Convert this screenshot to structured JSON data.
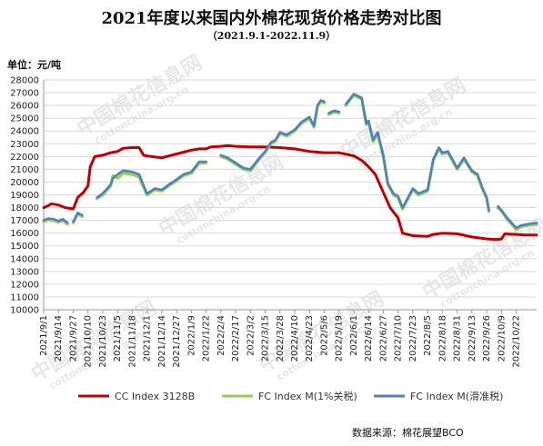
{
  "page": {
    "title": "2021年度以来国内外棉花现货价格走势对比图",
    "subtitle": "（2021.9.1-2022.11.9）",
    "unit_label": "单位：元/吨",
    "source": "数据来源：棉花展望BCO",
    "watermark_text": "中国棉花信息网",
    "watermark_url": "cottonchina.org.cn"
  },
  "chart_data": {
    "type": "line",
    "ylim": [
      10000,
      28000
    ],
    "y_ticks": [
      10000,
      11000,
      12000,
      13000,
      14000,
      15000,
      16000,
      17000,
      18000,
      19000,
      20000,
      21000,
      22000,
      23000,
      24000,
      25000,
      26000,
      27000,
      28000
    ],
    "x_ticks": [
      "2021/9/1",
      "2021/9/14",
      "2021/9/27",
      "2021/10/10",
      "2021/10/23",
      "2021/11/5",
      "2021/11/18",
      "2021/12/1",
      "2021/12/14",
      "2021/12/27",
      "2022/1/9",
      "2022/1/22",
      "2022/2/4",
      "2022/2/17",
      "2022/3/2",
      "2022/3/15",
      "2022/3/28",
      "2022/4/10",
      "2022/4/23",
      "2022/5/6",
      "2022/5/19",
      "2022/6/1",
      "2022/6/14",
      "2022/6/27",
      "2022/7/10",
      "2022/7/23",
      "2022/8/5",
      "2022/8/18",
      "2022/8/31",
      "2022/9/13",
      "2022/9/26",
      "2022/10/9",
      "2022/10/22"
    ],
    "grid": "horizontal",
    "legend_position": "bottom",
    "series": [
      {
        "name": "CC Index 3128B",
        "color": "#c00000",
        "points": [
          [
            "2021-09-01",
            18000
          ],
          [
            "2021-09-05",
            18150
          ],
          [
            "2021-09-08",
            18300
          ],
          [
            "2021-09-14",
            18200
          ],
          [
            "2021-09-20",
            18000
          ],
          [
            "2021-09-27",
            17900
          ],
          [
            "2021-10-01",
            18800
          ],
          [
            "2021-10-06",
            19200
          ],
          [
            "2021-10-10",
            19700
          ],
          [
            "2021-10-12",
            21200
          ],
          [
            "2021-10-16",
            22000
          ],
          [
            "2021-10-23",
            22100
          ],
          [
            "2021-10-30",
            22300
          ],
          [
            "2021-11-05",
            22400
          ],
          [
            "2021-11-10",
            22650
          ],
          [
            "2021-11-18",
            22700
          ],
          [
            "2021-11-24",
            22700
          ],
          [
            "2021-11-28",
            22100
          ],
          [
            "2021-12-01",
            22050
          ],
          [
            "2021-12-14",
            21900
          ],
          [
            "2021-12-27",
            22200
          ],
          [
            "2022-01-09",
            22500
          ],
          [
            "2022-01-16",
            22600
          ],
          [
            "2022-01-22",
            22600
          ],
          [
            "2022-01-26",
            22750
          ],
          [
            "2022-02-04",
            22800
          ],
          [
            "2022-02-10",
            22850
          ],
          [
            "2022-02-17",
            22800
          ],
          [
            "2022-03-02",
            22750
          ],
          [
            "2022-03-15",
            22750
          ],
          [
            "2022-03-28",
            22700
          ],
          [
            "2022-04-10",
            22600
          ],
          [
            "2022-04-23",
            22400
          ],
          [
            "2022-05-06",
            22300
          ],
          [
            "2022-05-19",
            22300
          ],
          [
            "2022-06-01",
            22050
          ],
          [
            "2022-06-08",
            21700
          ],
          [
            "2022-06-14",
            21200
          ],
          [
            "2022-06-20",
            20600
          ],
          [
            "2022-06-27",
            19200
          ],
          [
            "2022-07-03",
            18000
          ],
          [
            "2022-07-10",
            17200
          ],
          [
            "2022-07-14",
            16000
          ],
          [
            "2022-07-23",
            15800
          ],
          [
            "2022-08-05",
            15750
          ],
          [
            "2022-08-10",
            15900
          ],
          [
            "2022-08-18",
            16000
          ],
          [
            "2022-08-31",
            15950
          ],
          [
            "2022-09-13",
            15700
          ],
          [
            "2022-09-26",
            15550
          ],
          [
            "2022-10-05",
            15500
          ],
          [
            "2022-10-09",
            15550
          ],
          [
            "2022-10-12",
            15950
          ],
          [
            "2022-10-22",
            15900
          ],
          [
            "2022-10-30",
            15850
          ],
          [
            "2022-11-09",
            15850
          ]
        ]
      },
      {
        "name": "FC Index M(1%关税)",
        "color": "#92d050",
        "points": [
          [
            "2021-09-01",
            16900
          ],
          [
            "2021-09-05",
            17050
          ],
          [
            "2021-09-10",
            17000
          ],
          [
            "2021-09-14",
            16850
          ],
          [
            "2021-09-18",
            17000
          ],
          [
            "2021-09-22",
            16700
          ],
          null,
          [
            "2021-09-27",
            16800
          ],
          [
            "2021-10-01",
            17500
          ],
          [
            "2021-10-05",
            17300
          ],
          null,
          [
            "2021-10-18",
            18700
          ],
          [
            "2021-10-23",
            19000
          ],
          [
            "2021-10-30",
            19700
          ],
          [
            "2021-11-01",
            20500
          ],
          [
            "2021-11-05",
            20300
          ],
          [
            "2021-11-10",
            20700
          ],
          [
            "2021-11-18",
            20600
          ],
          [
            "2021-11-24",
            20400
          ],
          [
            "2021-12-01",
            19000
          ],
          [
            "2021-12-08",
            19400
          ],
          [
            "2021-12-14",
            19300
          ],
          [
            "2021-12-20",
            19700
          ],
          [
            "2021-12-27",
            20100
          ],
          [
            "2022-01-02",
            20500
          ],
          [
            "2022-01-09",
            20700
          ],
          [
            "2022-01-16",
            21500
          ],
          [
            "2022-01-22",
            21500
          ],
          null,
          [
            "2022-02-04",
            22000
          ],
          [
            "2022-02-10",
            21800
          ],
          [
            "2022-02-17",
            21400
          ],
          [
            "2022-02-24",
            21000
          ],
          [
            "2022-03-02",
            20900
          ],
          [
            "2022-03-10",
            21800
          ],
          [
            "2022-03-15",
            22300
          ],
          [
            "2022-03-20",
            23000
          ],
          [
            "2022-03-24",
            23200
          ],
          [
            "2022-03-28",
            23800
          ],
          [
            "2022-04-03",
            23600
          ],
          [
            "2022-04-10",
            24000
          ],
          [
            "2022-04-16",
            24600
          ],
          [
            "2022-04-23",
            25000
          ],
          [
            "2022-04-27",
            24300
          ],
          [
            "2022-04-30",
            25900
          ],
          [
            "2022-05-03",
            26300
          ],
          [
            "2022-05-06",
            26200
          ],
          null,
          [
            "2022-05-10",
            25300
          ],
          [
            "2022-05-15",
            25500
          ],
          [
            "2022-05-19",
            25400
          ],
          null,
          [
            "2022-05-25",
            26000
          ],
          [
            "2022-06-01",
            26800
          ],
          [
            "2022-06-08",
            26500
          ],
          [
            "2022-06-12",
            24500
          ],
          [
            "2022-06-14",
            24700
          ],
          [
            "2022-06-18",
            23200
          ],
          [
            "2022-06-22",
            23800
          ],
          [
            "2022-06-27",
            22000
          ],
          [
            "2022-07-01",
            19800
          ],
          [
            "2022-07-06",
            19000
          ],
          [
            "2022-07-10",
            18800
          ],
          [
            "2022-07-14",
            17900
          ],
          [
            "2022-07-23",
            19400
          ],
          [
            "2022-07-28",
            19000
          ],
          [
            "2022-08-05",
            19300
          ],
          [
            "2022-08-10",
            21700
          ],
          [
            "2022-08-15",
            22600
          ],
          [
            "2022-08-18",
            22200
          ],
          [
            "2022-08-23",
            22300
          ],
          [
            "2022-08-28",
            21500
          ],
          [
            "2022-08-31",
            21000
          ],
          [
            "2022-09-06",
            21800
          ],
          [
            "2022-09-13",
            20800
          ],
          [
            "2022-09-18",
            20500
          ],
          [
            "2022-09-22",
            19500
          ],
          [
            "2022-09-26",
            18700
          ],
          [
            "2022-09-28",
            17700
          ],
          null,
          [
            "2022-10-06",
            18000
          ],
          [
            "2022-10-09",
            17700
          ],
          [
            "2022-10-14",
            17100
          ],
          [
            "2022-10-22",
            16300
          ],
          [
            "2022-10-26",
            16500
          ],
          [
            "2022-11-01",
            16600
          ],
          [
            "2022-11-09",
            16700
          ]
        ]
      },
      {
        "name": "FC Index M(滑准税)",
        "color": "#4f81bd",
        "points": [
          [
            "2021-09-01",
            17000
          ],
          [
            "2021-09-05",
            17150
          ],
          [
            "2021-09-10",
            17100
          ],
          [
            "2021-09-14",
            16950
          ],
          [
            "2021-09-18",
            17100
          ],
          [
            "2021-09-22",
            16800
          ],
          null,
          [
            "2021-09-27",
            16900
          ],
          [
            "2021-10-01",
            17600
          ],
          [
            "2021-10-05",
            17400
          ],
          null,
          [
            "2021-10-18",
            18800
          ],
          [
            "2021-10-23",
            19100
          ],
          [
            "2021-10-30",
            19800
          ],
          [
            "2021-11-01",
            20300
          ],
          [
            "2021-11-05",
            20600
          ],
          [
            "2021-11-10",
            20900
          ],
          [
            "2021-11-18",
            20800
          ],
          [
            "2021-11-24",
            20600
          ],
          [
            "2021-12-01",
            19100
          ],
          [
            "2021-12-08",
            19500
          ],
          [
            "2021-12-14",
            19400
          ],
          [
            "2021-12-20",
            19800
          ],
          [
            "2021-12-27",
            20200
          ],
          [
            "2022-01-02",
            20600
          ],
          [
            "2022-01-09",
            20800
          ],
          [
            "2022-01-16",
            21600
          ],
          [
            "2022-01-22",
            21600
          ],
          null,
          [
            "2022-02-04",
            22100
          ],
          [
            "2022-02-10",
            21900
          ],
          [
            "2022-02-17",
            21500
          ],
          [
            "2022-02-24",
            21100
          ],
          [
            "2022-03-02",
            21000
          ],
          [
            "2022-03-10",
            21900
          ],
          [
            "2022-03-15",
            22400
          ],
          [
            "2022-03-20",
            23100
          ],
          [
            "2022-03-24",
            23300
          ],
          [
            "2022-03-28",
            23900
          ],
          [
            "2022-04-03",
            23700
          ],
          [
            "2022-04-10",
            24100
          ],
          [
            "2022-04-16",
            24700
          ],
          [
            "2022-04-23",
            25100
          ],
          [
            "2022-04-27",
            24400
          ],
          [
            "2022-04-30",
            26000
          ],
          [
            "2022-05-03",
            26400
          ],
          [
            "2022-05-06",
            26300
          ],
          null,
          [
            "2022-05-10",
            25400
          ],
          [
            "2022-05-15",
            25600
          ],
          [
            "2022-05-19",
            25500
          ],
          null,
          [
            "2022-05-25",
            26100
          ],
          [
            "2022-06-01",
            26900
          ],
          [
            "2022-06-08",
            26600
          ],
          [
            "2022-06-12",
            24600
          ],
          [
            "2022-06-14",
            24800
          ],
          [
            "2022-06-18",
            23300
          ],
          [
            "2022-06-22",
            23900
          ],
          [
            "2022-06-27",
            22100
          ],
          [
            "2022-07-01",
            19900
          ],
          [
            "2022-07-06",
            19100
          ],
          [
            "2022-07-10",
            18900
          ],
          [
            "2022-07-14",
            18000
          ],
          [
            "2022-07-23",
            19500
          ],
          [
            "2022-07-28",
            19100
          ],
          [
            "2022-08-05",
            19400
          ],
          [
            "2022-08-10",
            21800
          ],
          [
            "2022-08-15",
            22700
          ],
          [
            "2022-08-18",
            22300
          ],
          [
            "2022-08-23",
            22400
          ],
          [
            "2022-08-28",
            21600
          ],
          [
            "2022-08-31",
            21100
          ],
          [
            "2022-09-06",
            21900
          ],
          [
            "2022-09-13",
            20900
          ],
          [
            "2022-09-18",
            20600
          ],
          [
            "2022-09-22",
            19600
          ],
          [
            "2022-09-26",
            18800
          ],
          [
            "2022-09-28",
            17800
          ],
          null,
          [
            "2022-10-06",
            18100
          ],
          [
            "2022-10-09",
            17800
          ],
          [
            "2022-10-14",
            17200
          ],
          [
            "2022-10-22",
            16400
          ],
          [
            "2022-10-26",
            16600
          ],
          [
            "2022-11-01",
            16700
          ],
          [
            "2022-11-09",
            16800
          ]
        ]
      }
    ]
  }
}
